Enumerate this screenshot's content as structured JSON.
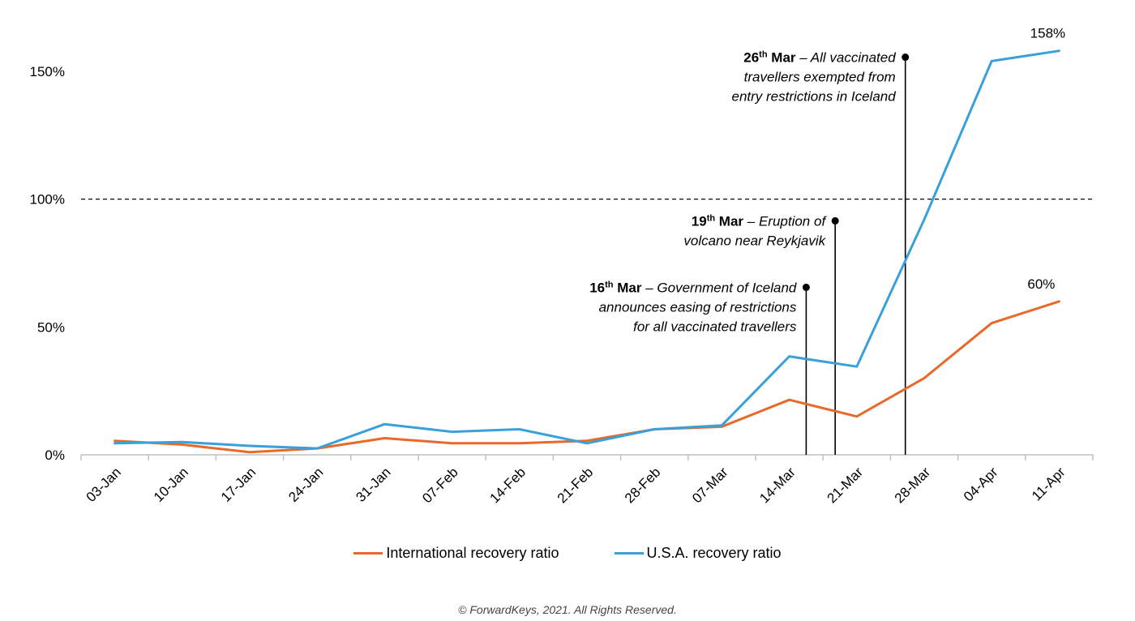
{
  "chart_data": {
    "type": "line",
    "categories": [
      "03-Jan",
      "10-Jan",
      "17-Jan",
      "24-Jan",
      "31-Jan",
      "07-Feb",
      "14-Feb",
      "21-Feb",
      "28-Feb",
      "07-Mar",
      "14-Mar",
      "21-Mar",
      "28-Mar",
      "04-Apr",
      "11-Apr"
    ],
    "series": [
      {
        "name": "International recovery ratio",
        "color": "#E8692A",
        "values": [
          5.5,
          4,
          1,
          2.5,
          6.5,
          4.5,
          4.5,
          5.5,
          10,
          11,
          21.5,
          15,
          30,
          51.5,
          60
        ]
      },
      {
        "name": "U.S.A. recovery ratio",
        "color": "#3AA0DA",
        "values": [
          4.5,
          5,
          3.5,
          2.5,
          12,
          9,
          10,
          4.5,
          10,
          11.5,
          38.5,
          34.5,
          92,
          154,
          158
        ]
      }
    ],
    "ylim": [
      0,
      165
    ],
    "yticks": [
      "0%",
      "50%",
      "100%",
      "150%"
    ],
    "reference_line": {
      "value": 100,
      "style": "dashed"
    },
    "end_labels": {
      "international": "60%",
      "usa": "158%"
    },
    "annotations": [
      {
        "date_index": 10.25,
        "y": 65.5,
        "lines": [
          {
            "bold": "16",
            "sup": "th",
            "bold2": " Mar",
            "rest": " – Government of Iceland"
          },
          {
            "rest": "announces easing of restrictions"
          },
          {
            "rest": "for all vaccinated travellers"
          }
        ]
      },
      {
        "date_index": 10.68,
        "y": 91.5,
        "lines": [
          {
            "bold": "19",
            "sup": "th",
            "bold2": " Mar",
            "rest": " – Eruption of"
          },
          {
            "rest": "volcano near Reykjavik"
          }
        ]
      },
      {
        "date_index": 11.72,
        "y": 155.5,
        "lines": [
          {
            "bold": "26",
            "sup": "th",
            "bold2": " Mar",
            "rest": " – All vaccinated"
          },
          {
            "rest": "travellers exempted from"
          },
          {
            "rest": "entry restrictions in Iceland"
          }
        ]
      }
    ],
    "grid": false,
    "legend_position": "bottom"
  },
  "footer": "© ForwardKeys, 2021. All Rights Reserved."
}
